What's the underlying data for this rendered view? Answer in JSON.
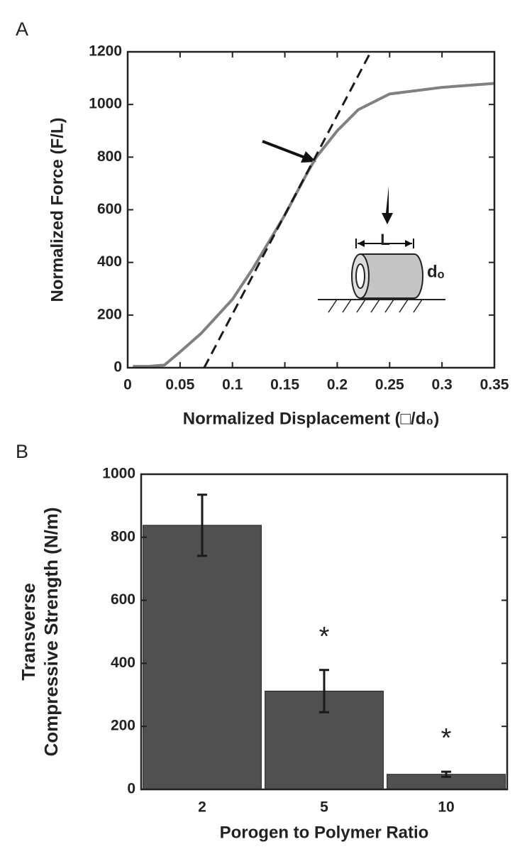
{
  "chart_data": [
    {
      "type": "line",
      "panel_label": "A",
      "xlabel": "Normalized Displacement (□/d₀)",
      "ylabel": "Normalized Force (F/L)",
      "xlim": [
        0,
        0.35
      ],
      "xticks": [
        0,
        0.05,
        0.1,
        0.15,
        0.2,
        0.25,
        0.3,
        0.35
      ],
      "ylim": [
        0,
        1200
      ],
      "yticks": [
        0,
        200,
        400,
        600,
        800,
        1000,
        1200
      ],
      "series": [
        {
          "color": "#808080",
          "x": [
            0.005,
            0.02,
            0.035,
            0.05,
            0.07,
            0.1,
            0.12,
            0.15,
            0.17,
            0.18,
            0.2,
            0.22,
            0.25,
            0.3,
            0.35
          ],
          "values": [
            5,
            5,
            10,
            60,
            130,
            260,
            380,
            580,
            730,
            800,
            900,
            980,
            1040,
            1065,
            1080
          ]
        },
        {
          "color": "#1a1a1a",
          "dashed": true,
          "x": [
            0.073,
            0.232
          ],
          "values": [
            0,
            1200
          ]
        }
      ],
      "annotations": [
        "L",
        "dₒ"
      ]
    },
    {
      "type": "bar",
      "panel_label": "B",
      "xlabel": "Porogen to Polymer Ratio",
      "ylabel": [
        "Transverse",
        "Compressive Strength (N/m)"
      ],
      "categories": [
        "2",
        "5",
        "10"
      ],
      "values": [
        838,
        312,
        48
      ],
      "errors": [
        97,
        67,
        8
      ],
      "color": "#505050",
      "annotations": [
        null,
        "*",
        "*"
      ],
      "ylim": [
        0,
        1000
      ],
      "yticks": [
        0,
        200,
        400,
        600,
        800,
        1000
      ]
    }
  ]
}
